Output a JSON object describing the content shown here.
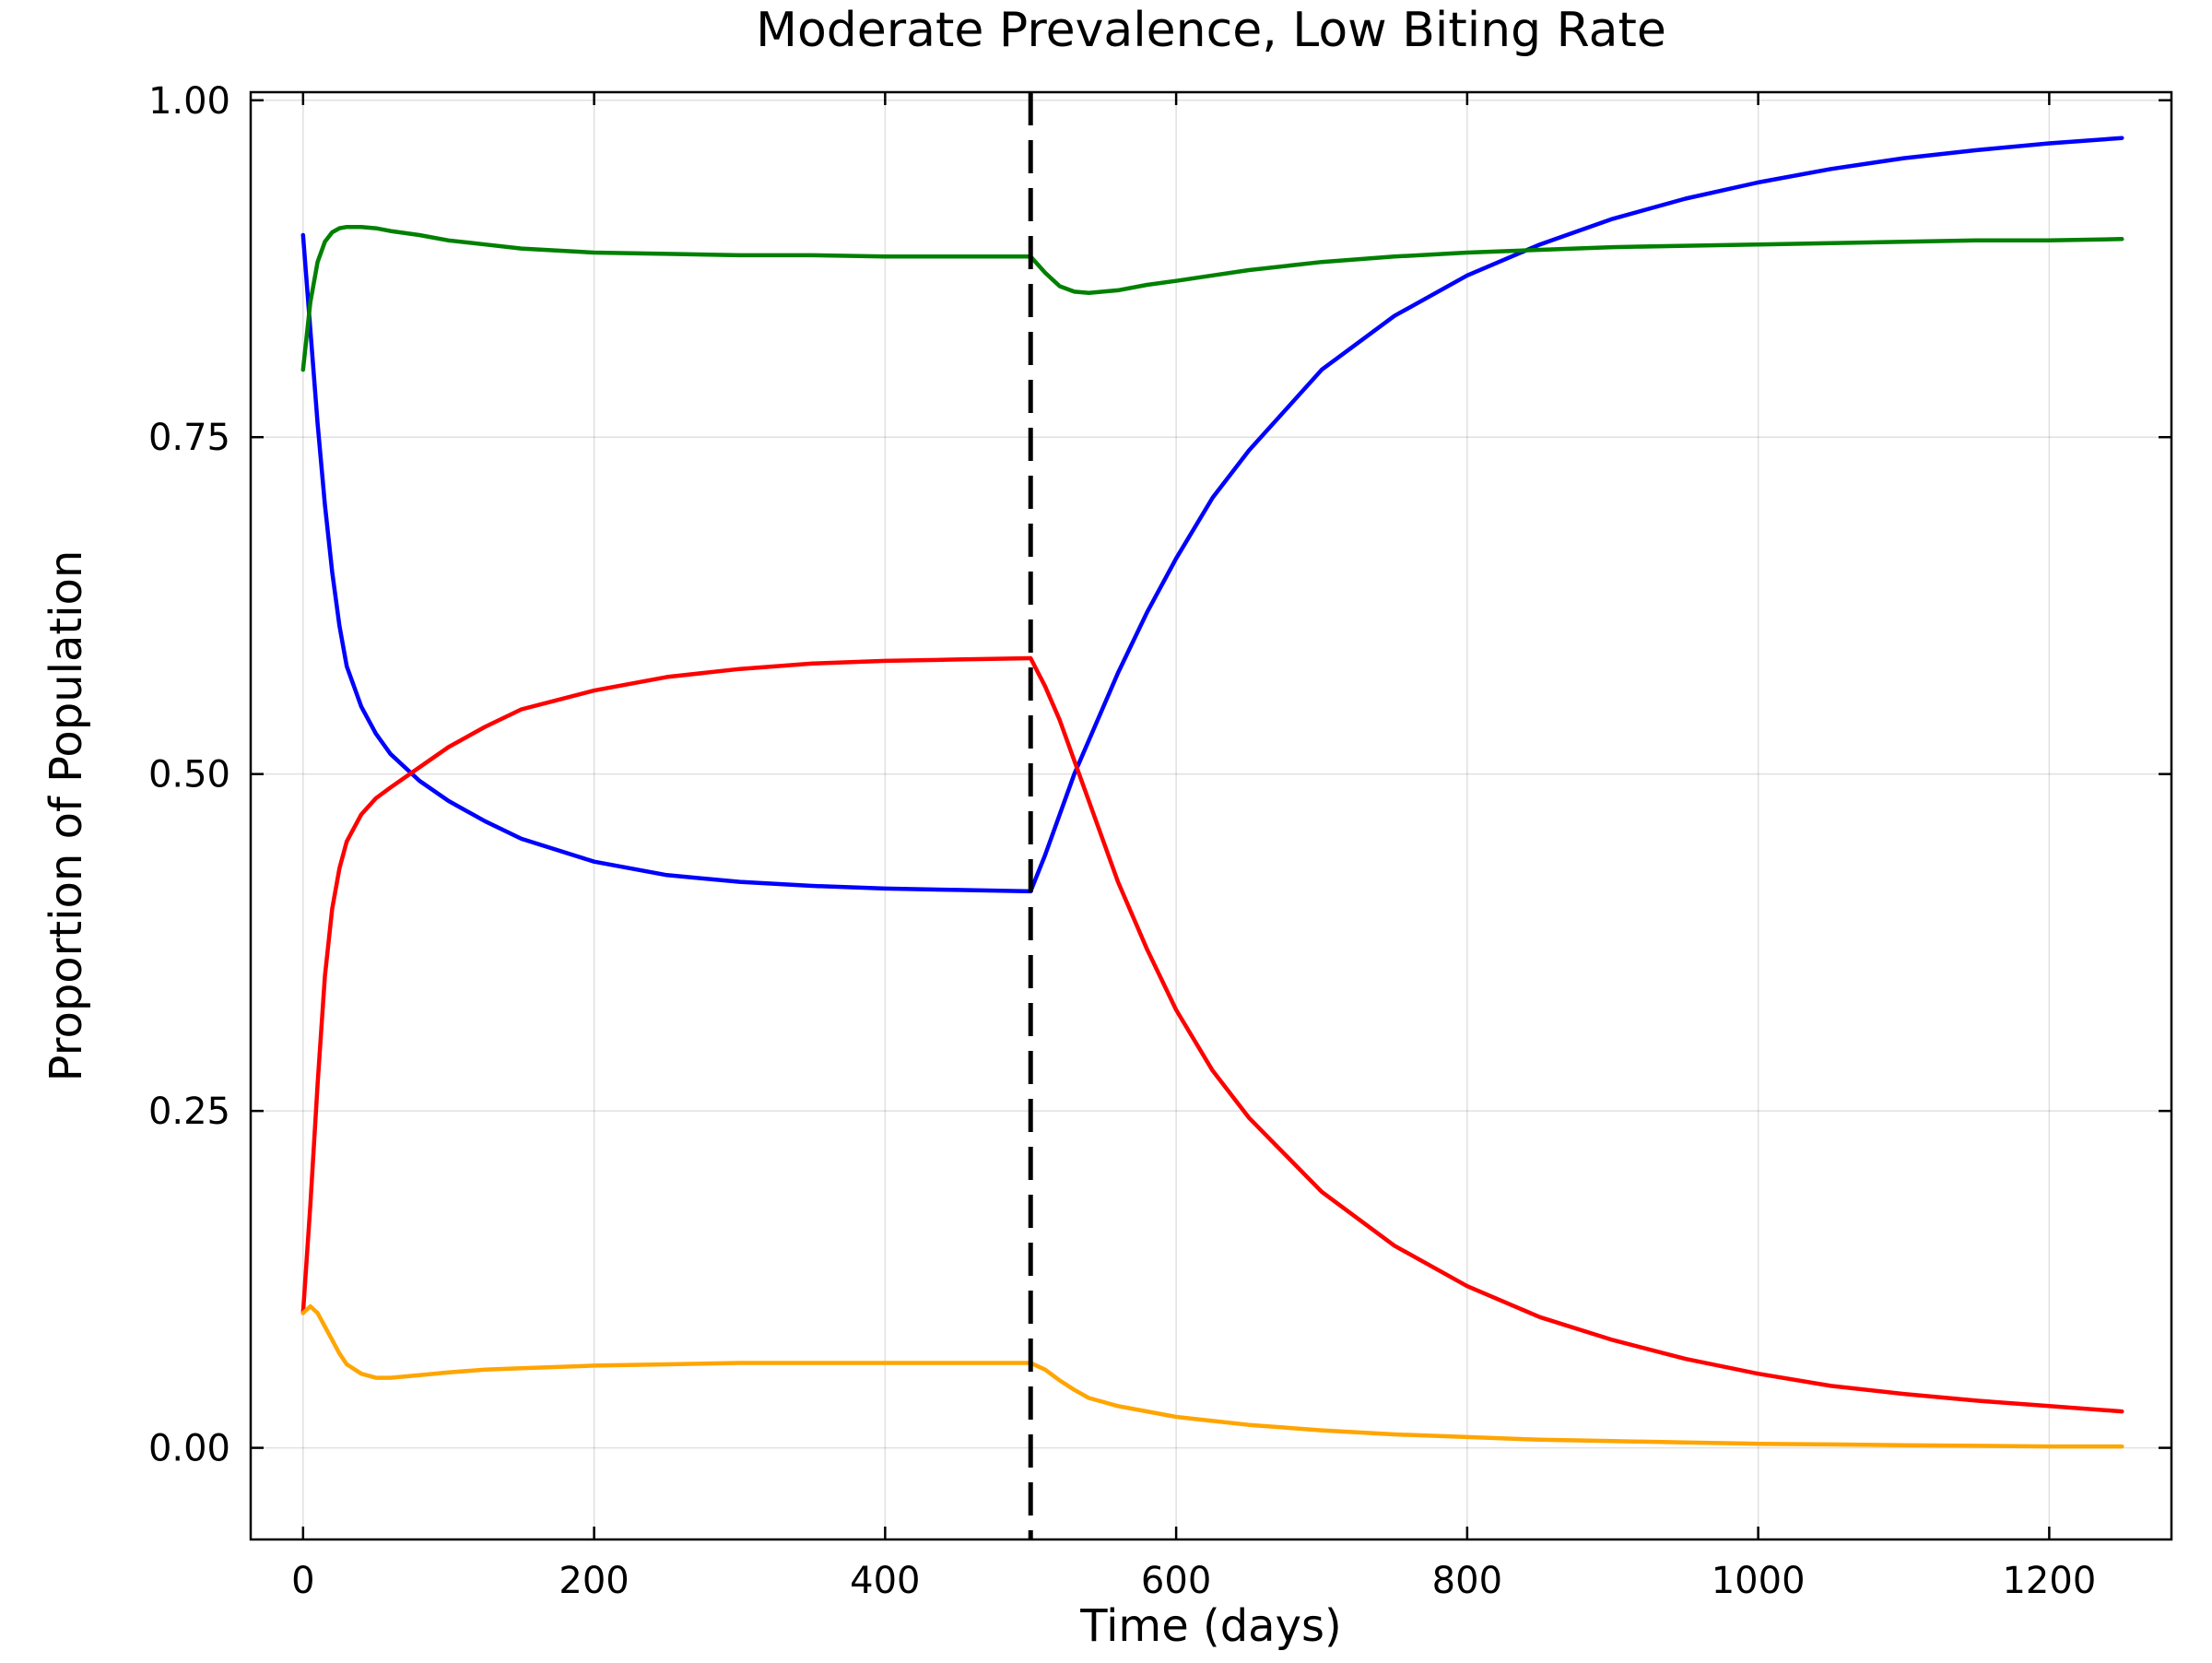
{
  "chart_data": {
    "type": "line",
    "title": "Moderate Prevalence, Low Biting Rate",
    "xlabel": "Time (days)",
    "ylabel": "Proportion of Population",
    "xlim": [
      -36,
      1284
    ],
    "ylim": [
      -0.068,
      1.006
    ],
    "xticks": [
      0,
      200,
      400,
      600,
      800,
      1000,
      1200
    ],
    "xtick_labels": [
      "0",
      "200",
      "400",
      "600",
      "800",
      "1000",
      "1200"
    ],
    "yticks": [
      0,
      0.25,
      0.5,
      0.75,
      1.0
    ],
    "ytick_labels": [
      "0.00",
      "0.25",
      "0.50",
      "0.75",
      "1.00"
    ],
    "grid": true,
    "legend": "none",
    "vline": {
      "x": 500,
      "style": "dashed",
      "color": "#000000"
    },
    "series": [
      {
        "color": "#0000ff",
        "x": [
          0,
          5,
          10,
          15,
          20,
          25,
          30,
          40,
          50,
          60,
          80,
          100,
          125,
          150,
          200,
          250,
          300,
          350,
          400,
          450,
          500,
          510,
          520,
          530,
          540,
          560,
          580,
          600,
          625,
          650,
          700,
          750,
          800,
          850,
          900,
          950,
          1000,
          1050,
          1100,
          1150,
          1200,
          1250
        ],
        "y": [
          0.9,
          0.83,
          0.76,
          0.7,
          0.65,
          0.61,
          0.58,
          0.55,
          0.53,
          0.515,
          0.495,
          0.48,
          0.465,
          0.452,
          0.435,
          0.425,
          0.42,
          0.417,
          0.415,
          0.414,
          0.413,
          0.44,
          0.47,
          0.5,
          0.525,
          0.575,
          0.62,
          0.66,
          0.705,
          0.74,
          0.8,
          0.84,
          0.87,
          0.893,
          0.912,
          0.927,
          0.939,
          0.949,
          0.957,
          0.963,
          0.968,
          0.972
        ]
      },
      {
        "color": "#ff0000",
        "x": [
          0,
          5,
          10,
          15,
          20,
          25,
          30,
          40,
          50,
          60,
          80,
          100,
          125,
          150,
          200,
          250,
          300,
          350,
          400,
          450,
          500,
          510,
          520,
          530,
          540,
          560,
          580,
          600,
          625,
          650,
          700,
          750,
          800,
          850,
          900,
          950,
          1000,
          1050,
          1100,
          1150,
          1200,
          1250
        ],
        "y": [
          0.1,
          0.18,
          0.27,
          0.35,
          0.4,
          0.43,
          0.45,
          0.47,
          0.482,
          0.49,
          0.505,
          0.52,
          0.535,
          0.548,
          0.562,
          0.572,
          0.578,
          0.582,
          0.584,
          0.585,
          0.586,
          0.565,
          0.54,
          0.51,
          0.48,
          0.42,
          0.37,
          0.325,
          0.28,
          0.245,
          0.19,
          0.15,
          0.12,
          0.097,
          0.08,
          0.066,
          0.055,
          0.046,
          0.04,
          0.035,
          0.031,
          0.027
        ]
      },
      {
        "color": "#008000",
        "x": [
          0,
          5,
          10,
          15,
          20,
          25,
          30,
          40,
          50,
          60,
          80,
          100,
          125,
          150,
          200,
          250,
          300,
          350,
          400,
          450,
          500,
          510,
          520,
          530,
          540,
          560,
          580,
          600,
          625,
          650,
          700,
          750,
          800,
          850,
          900,
          950,
          1000,
          1050,
          1100,
          1150,
          1200,
          1250
        ],
        "y": [
          0.8,
          0.85,
          0.88,
          0.895,
          0.902,
          0.905,
          0.906,
          0.906,
          0.905,
          0.903,
          0.9,
          0.896,
          0.893,
          0.89,
          0.887,
          0.886,
          0.885,
          0.885,
          0.884,
          0.884,
          0.884,
          0.872,
          0.862,
          0.858,
          0.857,
          0.859,
          0.863,
          0.866,
          0.87,
          0.874,
          0.88,
          0.884,
          0.887,
          0.889,
          0.891,
          0.892,
          0.893,
          0.894,
          0.895,
          0.896,
          0.896,
          0.897
        ]
      },
      {
        "color": "#ffa500",
        "x": [
          0,
          5,
          10,
          15,
          20,
          25,
          30,
          40,
          50,
          60,
          80,
          100,
          125,
          150,
          200,
          250,
          300,
          350,
          400,
          450,
          500,
          510,
          520,
          530,
          540,
          560,
          580,
          600,
          625,
          650,
          700,
          750,
          800,
          850,
          900,
          950,
          1000,
          1050,
          1100,
          1150,
          1200,
          1250
        ],
        "y": [
          0.1,
          0.105,
          0.1,
          0.09,
          0.08,
          0.07,
          0.062,
          0.055,
          0.052,
          0.052,
          0.054,
          0.056,
          0.058,
          0.059,
          0.061,
          0.062,
          0.063,
          0.063,
          0.063,
          0.063,
          0.063,
          0.058,
          0.05,
          0.043,
          0.037,
          0.031,
          0.027,
          0.023,
          0.02,
          0.017,
          0.013,
          0.01,
          0.008,
          0.006,
          0.005,
          0.004,
          0.003,
          0.0025,
          0.002,
          0.0015,
          0.001,
          0.001
        ]
      }
    ]
  }
}
